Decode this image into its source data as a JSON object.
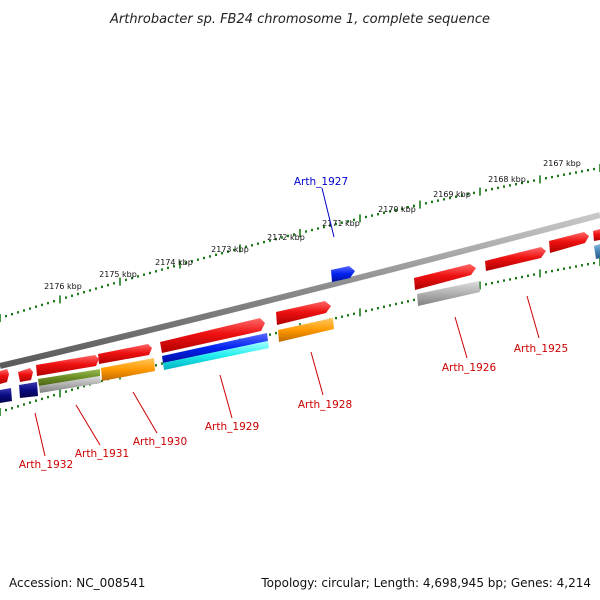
{
  "title": "Arthrobacter sp. FB24 chromosome 1, complete sequence",
  "footer": {
    "accession": "Accession: NC_008541",
    "summary": "Topology: circular; Length: 4,698,945 bp; Genes: 4,214"
  },
  "scale_labels": [
    "2167 kbp",
    "2168 kbp",
    "2169 kbp",
    "2170 kbp",
    "2171 kbp",
    "2172 kbp",
    "2173 kbp",
    "2174 kbp",
    "2175 kbp",
    "2176 kbp"
  ],
  "gene_labels": [
    {
      "text": "Arth_1927",
      "color": "#0000cc"
    },
    {
      "text": "Arth_1925",
      "color": "#cc0000"
    },
    {
      "text": "Arth_1926",
      "color": "#cc0000"
    },
    {
      "text": "Arth_1928",
      "color": "#cc0000"
    },
    {
      "text": "Arth_1929",
      "color": "#cc0000"
    },
    {
      "text": "Arth_1930",
      "color": "#cc0000"
    },
    {
      "text": "Arth_1931",
      "color": "#cc0000"
    },
    {
      "text": "Arth_1932",
      "color": "#cc0000"
    }
  ],
  "colors": {
    "backbone": "#888888",
    "tick": "#1a7a1a",
    "red": "#ee1111",
    "blue": "#0022ee",
    "navy": "#0a0a80",
    "orange": "#ff9900",
    "grey": "#b0b0b0",
    "olive": "#6b8e23",
    "cyan": "#22eeee",
    "steel": "#4682b4"
  }
}
